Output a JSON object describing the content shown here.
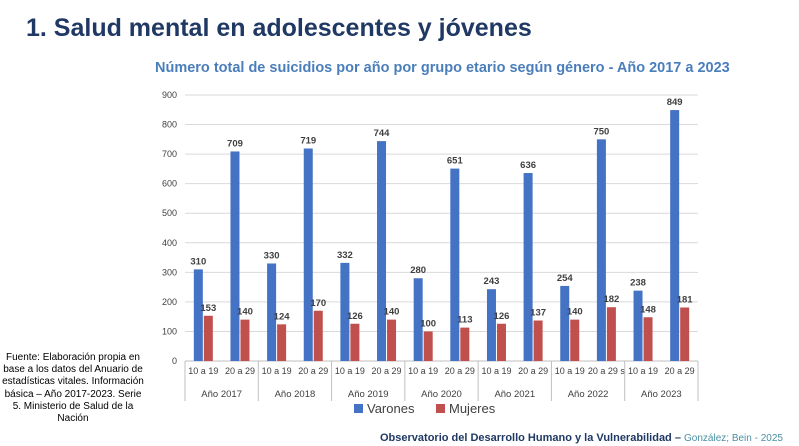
{
  "page": {
    "title": "1. Salud mental en adolescentes y jóvenes",
    "source": "Fuente: Elaboración propia en base a los datos del Anuario de estadísticas vitales. Información básica – Año 2017-2023. Serie 5. Ministerio de Salud de la Nación",
    "footer_org": "Observatorio del Desarrollo Humano y la Vulnerabilidad",
    "footer_dash": " – ",
    "footer_authors": "González; Bein - 2025"
  },
  "chart_data": {
    "type": "bar",
    "title": "Número total de suicidios por año por grupo etario según género - Año 2017 a 2023",
    "xlabel": "",
    "ylabel": "",
    "ylim": [
      0,
      900
    ],
    "yticks": [
      0,
      100,
      200,
      300,
      400,
      500,
      600,
      700,
      800,
      900
    ],
    "ytick_labels": [
      "0",
      "100",
      "200",
      "300",
      "400",
      "500",
      "600",
      "700",
      "800",
      "900"
    ],
    "grid": true,
    "legend_position": "bottom",
    "groups": [
      {
        "label": "Año 2017",
        "categories": [
          "10 a 19",
          "20 a 29"
        ]
      },
      {
        "label": "Año 2018",
        "categories": [
          "10 a 19",
          "20 a 29"
        ]
      },
      {
        "label": "Año 2019",
        "categories": [
          "10 a 19",
          "20 a 29"
        ]
      },
      {
        "label": "Año 2020",
        "categories": [
          "10 a 19",
          "20 a 29"
        ]
      },
      {
        "label": "Año 2021",
        "categories": [
          "10 a 19",
          "20 a 29"
        ]
      },
      {
        "label": "Año 2022",
        "categories": [
          "10 a 19",
          "20 a 29 s"
        ]
      },
      {
        "label": "Año 2023",
        "categories": [
          "10 a 19",
          "20 a 29"
        ]
      }
    ],
    "series": [
      {
        "name": "Varones",
        "color": "#4472c4",
        "values": [
          310,
          709,
          330,
          719,
          332,
          744,
          280,
          651,
          243,
          636,
          254,
          750,
          238,
          849
        ]
      },
      {
        "name": "Mujeres",
        "color": "#c0504d",
        "values": [
          153,
          140,
          124,
          170,
          126,
          140,
          100,
          113,
          126,
          137,
          140,
          182,
          148,
          181
        ]
      }
    ]
  }
}
